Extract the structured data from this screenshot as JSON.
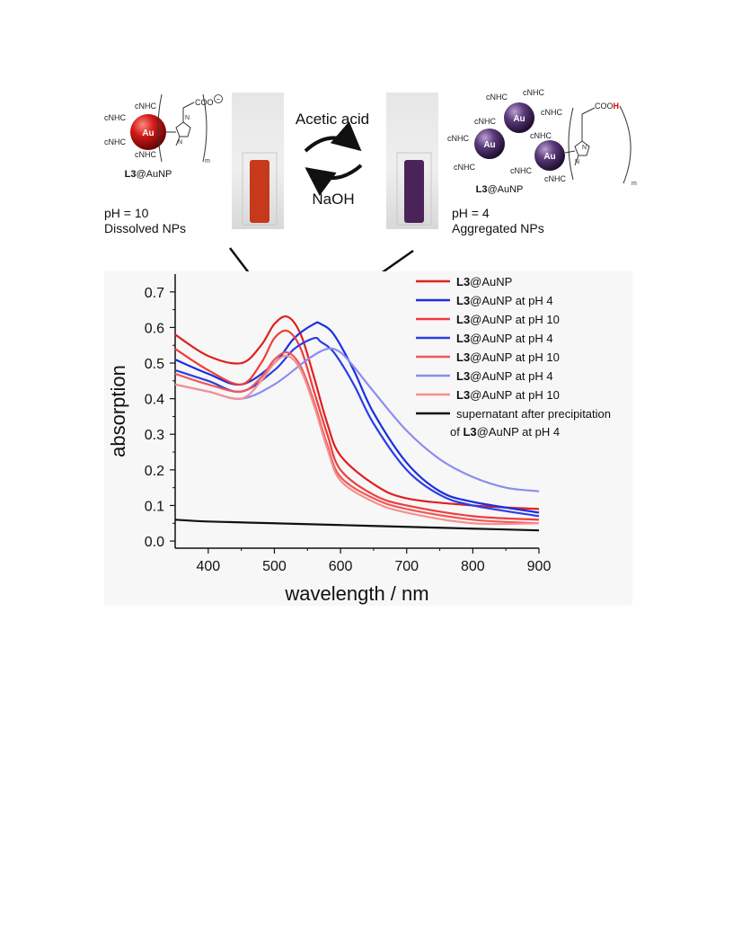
{
  "scheme": {
    "left": {
      "ligands": [
        "cNHC",
        "cNHC",
        "cNHC",
        "cNHC"
      ],
      "au_label": "Au",
      "charge_group": "COO",
      "charge_sign": "−",
      "subscript": "m",
      "name_bold": "L3",
      "name_rest": "@AuNP",
      "ph_line": "pH = 10",
      "state_line": "Dissolved NPs",
      "cuvette_color": "#c6391a"
    },
    "right": {
      "ligands": [
        "cNHC",
        "cNHC",
        "cNHC",
        "cNHC",
        "cNHC",
        "cNHC",
        "cNHC",
        "cNHC",
        "cNHC"
      ],
      "au_label": "Au",
      "acid_group": "COO",
      "acid_h": "H",
      "subscript": "m",
      "name_bold": "L3",
      "name_rest": "@AuNP",
      "ph_line": "pH = 4",
      "state_line": "Aggregated NPs",
      "cuvette_color": "#4a2359"
    },
    "top_reagent": "Acetic acid",
    "bottom_reagent": "NaOH",
    "colors": {
      "red_np": "#d01818",
      "purple_np": "#5a3a78"
    }
  },
  "chart_data": {
    "type": "line",
    "xlabel": "wavelength / nm",
    "ylabel": "absorption",
    "xlim": [
      350,
      900
    ],
    "ylim": [
      -0.02,
      0.75
    ],
    "xticks": [
      400,
      500,
      600,
      700,
      800,
      900
    ],
    "yticks": [
      0.0,
      0.1,
      0.2,
      0.3,
      0.4,
      0.5,
      0.6,
      0.7
    ],
    "xtick_labels": [
      "400",
      "500",
      "600",
      "700",
      "800",
      "900"
    ],
    "ytick_labels": [
      "0.0",
      "0.1",
      "0.2",
      "0.3",
      "0.4",
      "0.5",
      "0.6",
      "0.7"
    ],
    "grid": false,
    "legend_position": "top-right",
    "series": [
      {
        "name_bold": "L3",
        "name_rest": "@AuNP",
        "color": "#e02020",
        "x": [
          350,
          400,
          450,
          480,
          500,
          520,
          540,
          560,
          580,
          600,
          650,
          700,
          800,
          900
        ],
        "y": [
          0.58,
          0.52,
          0.5,
          0.55,
          0.61,
          0.63,
          0.58,
          0.46,
          0.33,
          0.24,
          0.16,
          0.12,
          0.1,
          0.09
        ]
      },
      {
        "name_bold": "L3",
        "name_rest": "@AuNP at pH 4",
        "color": "#1a2fe0",
        "x": [
          350,
          400,
          450,
          500,
          530,
          560,
          570,
          590,
          620,
          650,
          700,
          750,
          800,
          900
        ],
        "y": [
          0.51,
          0.47,
          0.44,
          0.5,
          0.57,
          0.61,
          0.61,
          0.58,
          0.48,
          0.36,
          0.22,
          0.14,
          0.11,
          0.08
        ]
      },
      {
        "name_bold": "L3",
        "name_rest": "@AuNP at pH 10",
        "color": "#f03c3c",
        "x": [
          350,
          400,
          450,
          480,
          500,
          520,
          540,
          560,
          580,
          600,
          650,
          700,
          800,
          900
        ],
        "y": [
          0.54,
          0.48,
          0.44,
          0.5,
          0.57,
          0.59,
          0.54,
          0.42,
          0.3,
          0.2,
          0.13,
          0.1,
          0.07,
          0.06
        ]
      },
      {
        "name_bold": "L3",
        "name_rest": "@AuNP at pH 4",
        "color": "#2a3ee6",
        "x": [
          350,
          400,
          450,
          500,
          530,
          560,
          570,
          590,
          620,
          650,
          700,
          750,
          800,
          900
        ],
        "y": [
          0.48,
          0.45,
          0.42,
          0.48,
          0.54,
          0.57,
          0.56,
          0.53,
          0.44,
          0.33,
          0.2,
          0.13,
          0.1,
          0.07
        ]
      },
      {
        "name_bold": "L3",
        "name_rest": "@AuNP at pH 10",
        "color": "#f05858",
        "x": [
          350,
          400,
          450,
          480,
          500,
          520,
          540,
          560,
          580,
          600,
          650,
          700,
          800,
          900
        ],
        "y": [
          0.47,
          0.44,
          0.42,
          0.46,
          0.51,
          0.53,
          0.49,
          0.39,
          0.27,
          0.18,
          0.12,
          0.09,
          0.06,
          0.05
        ]
      },
      {
        "name_bold": "L3",
        "name_rest": "@AuNP at pH 4",
        "color": "#8c8cf2",
        "x": [
          350,
          400,
          450,
          500,
          550,
          580,
          600,
          620,
          650,
          700,
          750,
          800,
          850,
          900
        ],
        "y": [
          0.44,
          0.42,
          0.4,
          0.44,
          0.51,
          0.54,
          0.53,
          0.49,
          0.42,
          0.31,
          0.23,
          0.18,
          0.15,
          0.14
        ]
      },
      {
        "name_bold": "L3",
        "name_rest": "@AuNP at pH 10",
        "color": "#f59090",
        "x": [
          350,
          400,
          450,
          480,
          500,
          520,
          540,
          560,
          580,
          600,
          650,
          700,
          800,
          900
        ],
        "y": [
          0.44,
          0.42,
          0.4,
          0.45,
          0.5,
          0.52,
          0.48,
          0.38,
          0.26,
          0.17,
          0.11,
          0.08,
          0.05,
          0.05
        ]
      },
      {
        "name_line1": "supernatant after precipitation",
        "name_pre": "of ",
        "name_bold": "L3",
        "name_rest": "@AuNP at pH 4",
        "color": "#111111",
        "x": [
          350,
          400,
          500,
          600,
          700,
          800,
          900
        ],
        "y": [
          0.06,
          0.055,
          0.05,
          0.045,
          0.04,
          0.035,
          0.03
        ]
      }
    ]
  }
}
